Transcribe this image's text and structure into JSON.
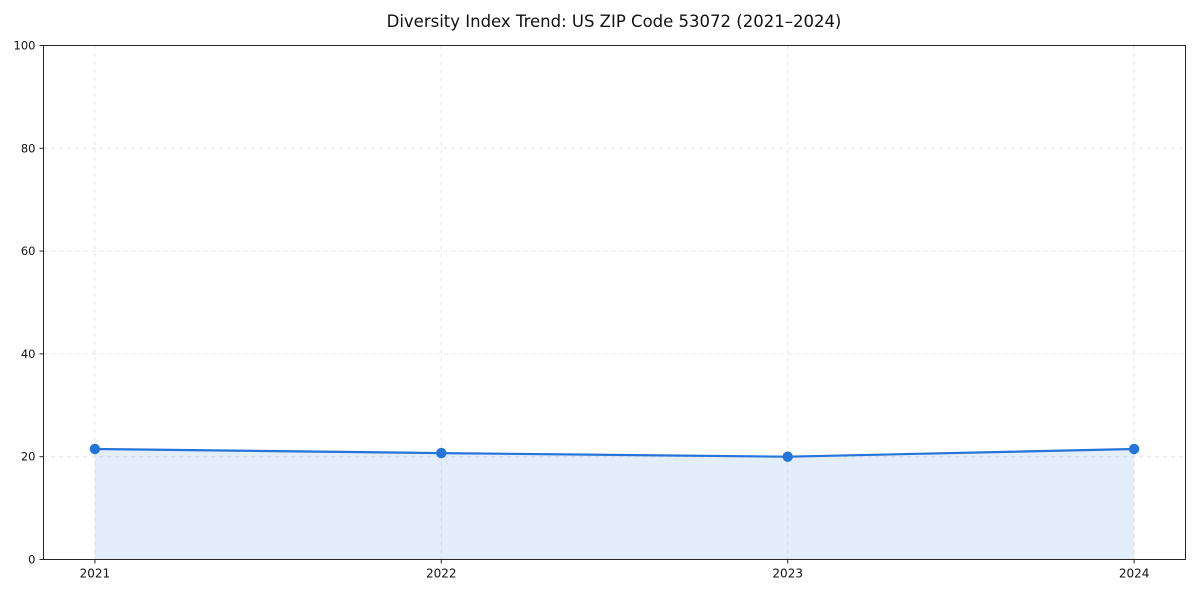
{
  "chart_data": {
    "type": "area",
    "title": "Diversity Index Trend: US ZIP Code 53072 (2021–2024)",
    "xlabel": "",
    "ylabel": "",
    "x": [
      2021,
      2022,
      2023,
      2024
    ],
    "series": [
      {
        "name": "Diversity Index",
        "values": [
          21.5,
          20.7,
          20.0,
          21.5
        ]
      }
    ],
    "ylim": [
      0,
      100
    ],
    "yticks": [
      0,
      20,
      40,
      60,
      80,
      100
    ],
    "xticks": [
      "2021",
      "2022",
      "2023",
      "2024"
    ],
    "grid": true,
    "grid_style": "dashed",
    "legend_position": "none",
    "colors": {
      "line": "#2474d9",
      "fill": "rgba(36,116,217,0.12)",
      "grid": "#e6e6e6",
      "spine": "#262626",
      "text": "#111111"
    }
  }
}
